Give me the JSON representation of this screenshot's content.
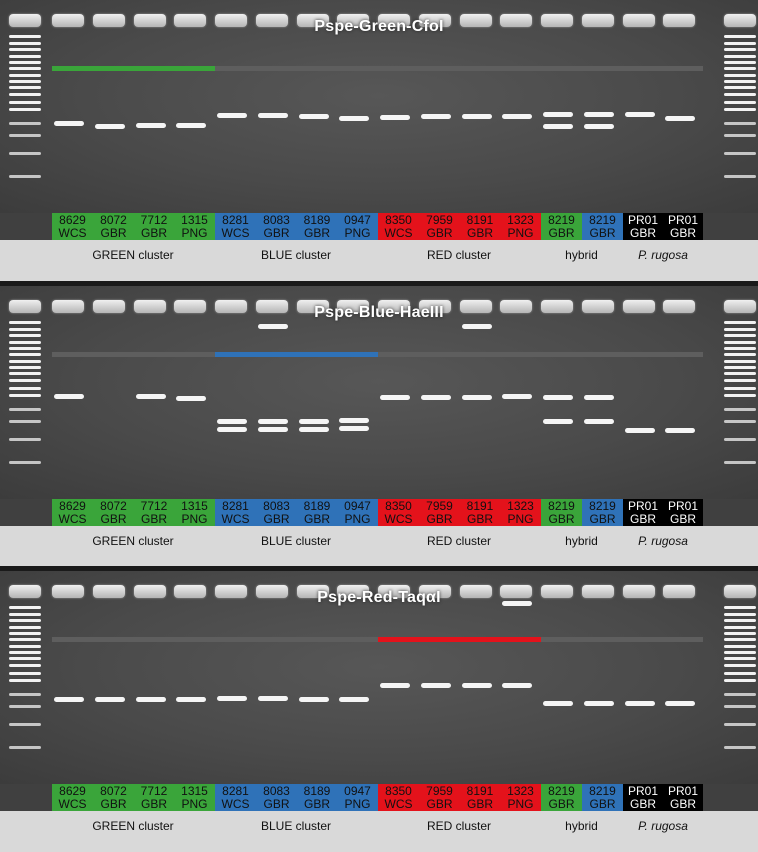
{
  "colors": {
    "green": "#3aa53a",
    "blue": "#2f72b8",
    "red": "#e4121b",
    "black": "#000000",
    "gel": "#4c4c4c",
    "band": "#f5f5f5"
  },
  "lanes": [
    {
      "id": "8629",
      "site": "WCS",
      "group": "green"
    },
    {
      "id": "8072",
      "site": "GBR",
      "group": "green"
    },
    {
      "id": "7712",
      "site": "GBR",
      "group": "green"
    },
    {
      "id": "1315",
      "site": "PNG",
      "group": "green"
    },
    {
      "id": "8281",
      "site": "WCS",
      "group": "blue"
    },
    {
      "id": "8083",
      "site": "GBR",
      "group": "blue"
    },
    {
      "id": "8189",
      "site": "GBR",
      "group": "blue"
    },
    {
      "id": "0947",
      "site": "PNG",
      "group": "blue"
    },
    {
      "id": "8350",
      "site": "WCS",
      "group": "red"
    },
    {
      "id": "7959",
      "site": "GBR",
      "group": "red"
    },
    {
      "id": "8191",
      "site": "GBR",
      "group": "red"
    },
    {
      "id": "1323",
      "site": "PNG",
      "group": "red"
    },
    {
      "id": "8219",
      "site": "GBR",
      "group": "green"
    },
    {
      "id": "8219",
      "site": "GBR",
      "group": "blue"
    },
    {
      "id": "PR01",
      "site": "GBR",
      "group": "black"
    },
    {
      "id": "PR01",
      "site": "GBR",
      "group": "black"
    }
  ],
  "groups": [
    {
      "label": "GREEN cluster",
      "italic": false
    },
    {
      "label": "BLUE cluster",
      "italic": false
    },
    {
      "label": "RED cluster",
      "italic": false
    },
    {
      "label": "hybrid",
      "italic": false
    },
    {
      "label": "P. rugosa",
      "italic": true
    }
  ],
  "panels": [
    {
      "title": "Pspe-Green-CfoI",
      "highlight": "green",
      "bands": [
        [
          121
        ],
        [
          124
        ],
        [
          123
        ],
        [
          123
        ],
        [
          113
        ],
        [
          113
        ],
        [
          114
        ],
        [
          116
        ],
        [
          115
        ],
        [
          114
        ],
        [
          114
        ],
        [
          114
        ],
        [
          112,
          124
        ],
        [
          112,
          124
        ],
        [
          112
        ],
        [
          116
        ]
      ]
    },
    {
      "title": "Pspe-Blue-HaeIII",
      "highlight": "blue",
      "bands": [
        [
          108
        ],
        [],
        [
          108
        ],
        [
          110
        ],
        [
          133,
          141
        ],
        [
          38,
          133,
          141
        ],
        [
          133,
          141
        ],
        [
          132,
          140
        ],
        [
          109
        ],
        [
          109
        ],
        [
          38,
          109
        ],
        [
          108
        ],
        [
          109,
          133
        ],
        [
          109,
          133
        ],
        [
          142
        ],
        [
          142
        ]
      ]
    },
    {
      "title": "Pspe-Red-TaqαI",
      "highlight": "red",
      "bands": [
        [
          126
        ],
        [
          126
        ],
        [
          126
        ],
        [
          126
        ],
        [
          125
        ],
        [
          125
        ],
        [
          126
        ],
        [
          126
        ],
        [
          112
        ],
        [
          112
        ],
        [
          112
        ],
        [
          30,
          112
        ],
        [
          130
        ],
        [
          130
        ],
        [
          130
        ],
        [
          130
        ]
      ]
    }
  ]
}
